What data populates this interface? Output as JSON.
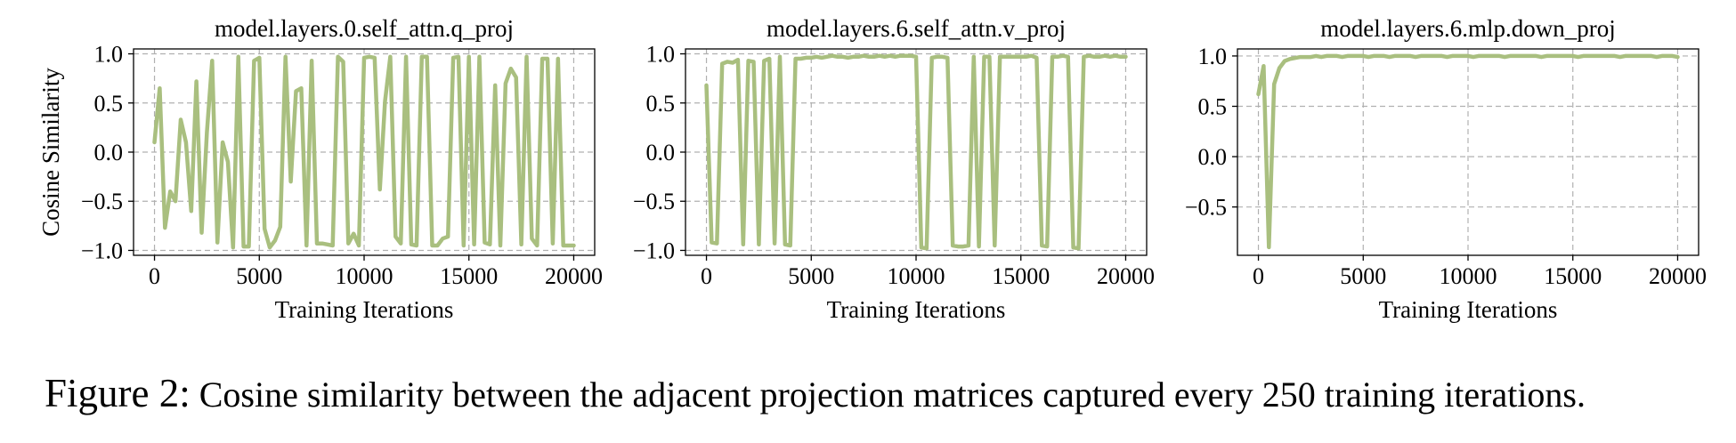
{
  "figure": {
    "label": "Figure 2:",
    "caption": " Cosine similarity between the adjacent projection matrices captured every 250 training iterations."
  },
  "style": {
    "line_color": "#a9bf7f",
    "grid_color": "#b0b0b0"
  },
  "chart_data": [
    {
      "type": "line",
      "title": "model.layers.0.self_attn.q_proj",
      "xlabel": "Training Iterations",
      "ylabel": "Cosine Similarity",
      "xlim": [
        -1000,
        21000
      ],
      "ylim": [
        -1.05,
        1.05
      ],
      "xticks": [
        0,
        5000,
        10000,
        15000,
        20000
      ],
      "yticks": [
        -1.0,
        -0.5,
        0.0,
        0.5,
        1.0
      ],
      "xticklabels": [
        "0",
        "5000",
        "10000",
        "15000",
        "20000"
      ],
      "yticklabels": [
        "−1.0",
        "−0.5",
        "0.0",
        "0.5",
        "1.0"
      ],
      "grid": true,
      "series": [
        {
          "x": [
            0,
            250,
            500,
            750,
            1000,
            1250,
            1500,
            1750,
            2000,
            2250,
            2500,
            2750,
            3000,
            3250,
            3500,
            3750,
            4000,
            4250,
            4500,
            4750,
            5000,
            5250,
            5500,
            5750,
            6000,
            6250,
            6500,
            6750,
            7000,
            7250,
            7500,
            7750,
            8000,
            8250,
            8500,
            8750,
            9000,
            9250,
            9500,
            9750,
            10000,
            10250,
            10500,
            10750,
            11000,
            11250,
            11500,
            11750,
            12000,
            12250,
            12500,
            12750,
            13000,
            13250,
            13500,
            13750,
            14000,
            14250,
            14500,
            14750,
            15000,
            15250,
            15500,
            15750,
            16000,
            16250,
            16500,
            16750,
            17000,
            17250,
            17500,
            17750,
            18000,
            18250,
            18500,
            18750,
            19000,
            19250,
            19500,
            19750,
            20000
          ],
          "values": [
            0.1,
            0.65,
            -0.77,
            -0.4,
            -0.5,
            0.33,
            0.1,
            -0.6,
            0.72,
            -0.82,
            0.2,
            0.93,
            -0.92,
            0.1,
            -0.1,
            -0.97,
            0.97,
            -0.96,
            -0.96,
            0.93,
            0.96,
            -0.78,
            -0.97,
            -0.9,
            -0.76,
            0.97,
            -0.3,
            0.62,
            0.65,
            -0.95,
            0.93,
            -0.93,
            -0.93,
            -0.94,
            -0.95,
            0.97,
            0.92,
            -0.93,
            -0.83,
            -0.95,
            0.96,
            0.97,
            0.96,
            -0.38,
            0.52,
            0.97,
            -0.86,
            -0.93,
            0.97,
            -0.94,
            -0.95,
            0.97,
            0.97,
            -0.95,
            -0.95,
            -0.88,
            -0.86,
            0.96,
            0.97,
            -0.95,
            0.97,
            -0.94,
            0.97,
            -0.92,
            -0.94,
            0.68,
            -0.95,
            0.7,
            0.85,
            0.76,
            -0.94,
            0.97,
            -0.88,
            -0.95,
            0.95,
            0.95,
            -0.93,
            0.95,
            -0.95,
            -0.95,
            -0.95
          ]
        }
      ]
    },
    {
      "type": "line",
      "title": "model.layers.6.self_attn.v_proj",
      "xlabel": "Training Iterations",
      "ylabel": "",
      "xlim": [
        -1000,
        21000
      ],
      "ylim": [
        -1.05,
        1.05
      ],
      "xticks": [
        0,
        5000,
        10000,
        15000,
        20000
      ],
      "yticks": [
        -1.0,
        -0.5,
        0.0,
        0.5,
        1.0
      ],
      "xticklabels": [
        "0",
        "5000",
        "10000",
        "15000",
        "20000"
      ],
      "yticklabels": [
        "−1.0",
        "−0.5",
        "0.0",
        "0.5",
        "1.0"
      ],
      "grid": true,
      "series": [
        {
          "x": [
            0,
            250,
            500,
            750,
            1000,
            1250,
            1500,
            1750,
            2000,
            2250,
            2500,
            2750,
            3000,
            3250,
            3500,
            3750,
            4000,
            4250,
            4500,
            4750,
            5000,
            5250,
            5500,
            5750,
            6000,
            6250,
            6500,
            6750,
            7000,
            7250,
            7500,
            7750,
            8000,
            8250,
            8500,
            8750,
            9000,
            9250,
            9500,
            9750,
            10000,
            10250,
            10500,
            10750,
            11000,
            11250,
            11500,
            11750,
            12000,
            12250,
            12500,
            12750,
            13000,
            13250,
            13500,
            13750,
            14000,
            14250,
            14500,
            14750,
            15000,
            15250,
            15500,
            15750,
            16000,
            16250,
            16500,
            16750,
            17000,
            17250,
            17500,
            17750,
            18000,
            18250,
            18500,
            18750,
            19000,
            19250,
            19500,
            19750,
            20000
          ],
          "values": [
            0.68,
            -0.92,
            -0.93,
            0.9,
            0.92,
            0.91,
            0.94,
            -0.94,
            0.93,
            0.92,
            -0.94,
            0.93,
            0.95,
            -0.93,
            0.97,
            -0.94,
            -0.95,
            0.95,
            0.95,
            0.96,
            0.96,
            0.97,
            0.96,
            0.97,
            0.98,
            0.97,
            0.97,
            0.96,
            0.97,
            0.97,
            0.98,
            0.97,
            0.97,
            0.98,
            0.97,
            0.98,
            0.97,
            0.98,
            0.98,
            0.98,
            0.97,
            -0.97,
            -0.98,
            0.96,
            0.97,
            0.97,
            0.96,
            -0.95,
            -0.96,
            -0.96,
            -0.95,
            0.97,
            -0.96,
            0.97,
            0.97,
            -0.95,
            0.97,
            0.97,
            0.97,
            0.97,
            0.97,
            0.97,
            0.98,
            0.96,
            -0.95,
            -0.96,
            0.97,
            0.97,
            0.98,
            0.97,
            -0.97,
            -0.98,
            0.97,
            0.98,
            0.97,
            0.97,
            0.98,
            0.97,
            0.98,
            0.97,
            0.97
          ]
        }
      ]
    },
    {
      "type": "line",
      "title": "model.layers.6.mlp.down_proj",
      "xlabel": "Training Iterations",
      "ylabel": "",
      "xlim": [
        -1000,
        21000
      ],
      "ylim": [
        -0.98,
        1.07
      ],
      "xticks": [
        0,
        5000,
        10000,
        15000,
        20000
      ],
      "yticks": [
        -0.5,
        0.0,
        0.5,
        1.0
      ],
      "xticklabels": [
        "0",
        "5000",
        "10000",
        "15000",
        "20000"
      ],
      "yticklabels": [
        "−0.5",
        "0.0",
        "0.5",
        "1.0"
      ],
      "grid": true,
      "series": [
        {
          "x": [
            0,
            250,
            500,
            750,
            1000,
            1250,
            1500,
            1750,
            2000,
            2250,
            2500,
            2750,
            3000,
            3250,
            3500,
            3750,
            4000,
            4250,
            4500,
            4750,
            5000,
            5250,
            5500,
            5750,
            6000,
            6250,
            6500,
            6750,
            7000,
            7250,
            7500,
            7750,
            8000,
            8250,
            8500,
            8750,
            9000,
            9250,
            9500,
            9750,
            10000,
            10250,
            10500,
            10750,
            11000,
            11250,
            11500,
            11750,
            12000,
            12250,
            12500,
            12750,
            13000,
            13250,
            13500,
            13750,
            14000,
            14250,
            14500,
            14750,
            15000,
            15250,
            15500,
            15750,
            16000,
            16250,
            16500,
            16750,
            17000,
            17250,
            17500,
            17750,
            18000,
            18250,
            18500,
            18750,
            19000,
            19250,
            19500,
            19750,
            20000
          ],
          "values": [
            0.62,
            0.9,
            -0.9,
            0.72,
            0.88,
            0.95,
            0.97,
            0.98,
            0.99,
            0.99,
            0.99,
            1.0,
            0.99,
            1.0,
            1.0,
            1.0,
            0.99,
            1.0,
            1.0,
            1.0,
            1.0,
            0.99,
            1.0,
            1.0,
            1.0,
            0.99,
            1.0,
            1.0,
            1.0,
            1.0,
            0.99,
            1.0,
            1.0,
            1.0,
            1.0,
            1.0,
            0.99,
            1.0,
            1.0,
            1.0,
            1.0,
            0.99,
            1.0,
            1.0,
            1.0,
            1.0,
            1.0,
            0.99,
            1.0,
            1.0,
            1.0,
            1.0,
            1.0,
            1.0,
            0.99,
            1.0,
            1.0,
            1.0,
            1.0,
            1.0,
            1.0,
            0.99,
            1.0,
            1.0,
            1.0,
            1.0,
            1.0,
            1.0,
            1.0,
            0.99,
            1.0,
            1.0,
            1.0,
            1.0,
            1.0,
            1.0,
            0.99,
            1.0,
            1.0,
            1.0,
            0.99
          ]
        }
      ]
    }
  ]
}
